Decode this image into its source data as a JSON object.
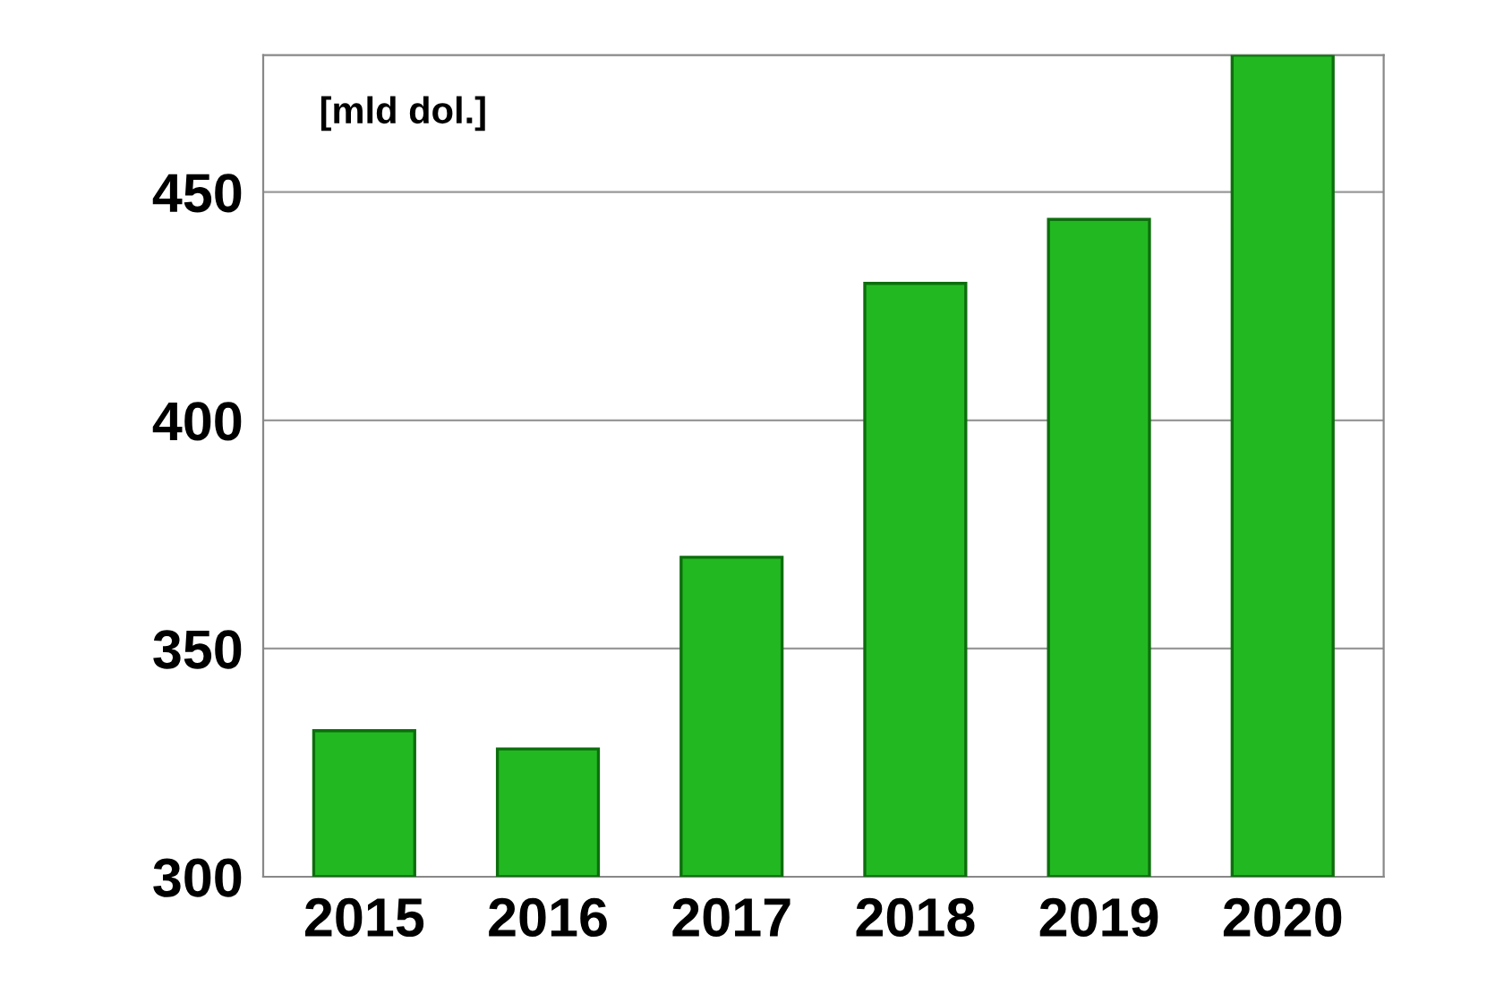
{
  "chart_data": {
    "type": "bar",
    "categories": [
      "2015",
      "2016",
      "2017",
      "2018",
      "2019",
      "2020"
    ],
    "values": [
      332,
      328,
      370,
      430,
      444,
      480
    ],
    "color": "#22b822",
    "ylim": [
      300,
      480
    ],
    "yticks": [
      300,
      350,
      400,
      450
    ],
    "grid": "y",
    "annotations": [
      "[mld dol.]"
    ]
  }
}
